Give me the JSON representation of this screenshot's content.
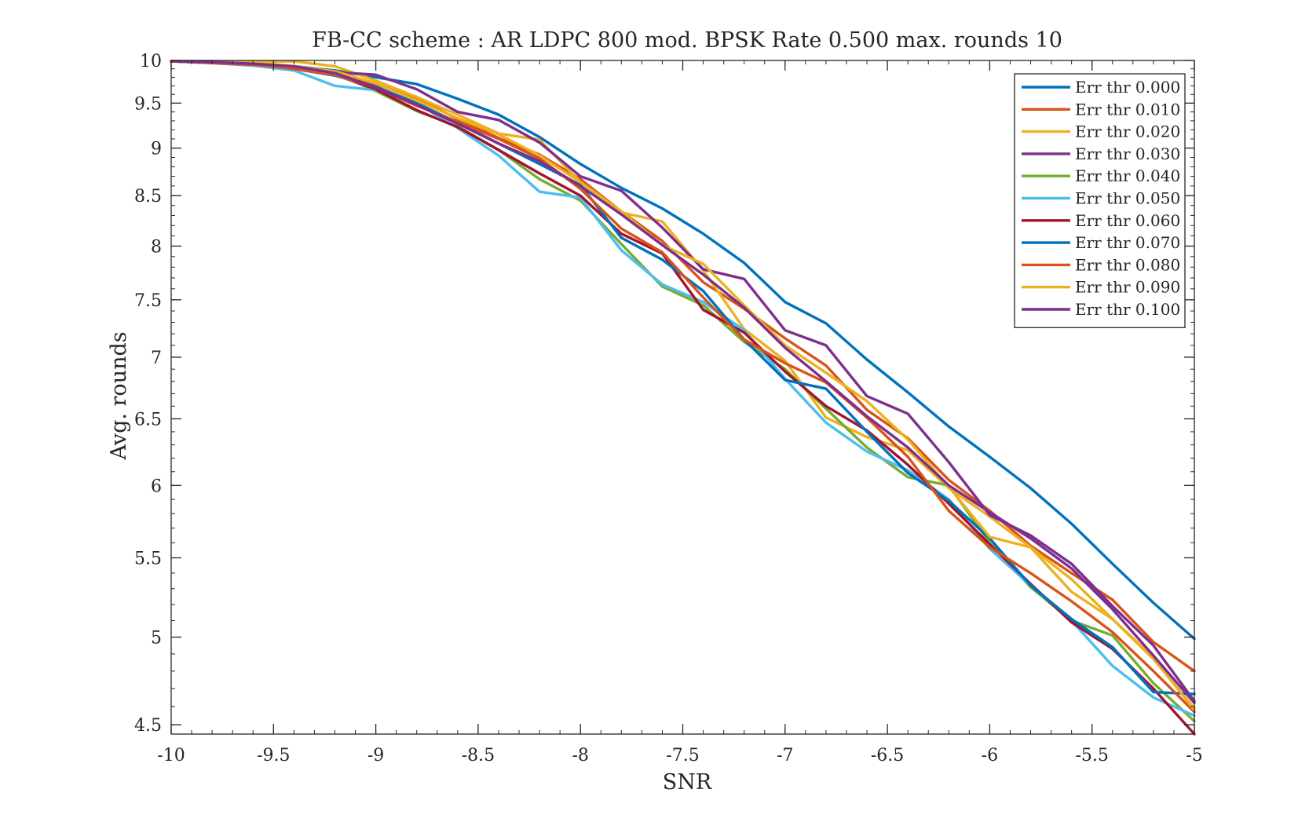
{
  "chart_data": {
    "type": "line",
    "title": "FB-CC scheme : AR LDPC 800 mod. BPSK Rate 0.500 max. rounds 10",
    "xlabel": "SNR",
    "ylabel": "Avg. rounds",
    "xlim": [
      -10,
      -5
    ],
    "ylim": [
      4.45,
      10
    ],
    "yscale": "log",
    "grid": false,
    "legend_position": "top-right",
    "x_ticks": [
      -10,
      -9.5,
      -9,
      -8.5,
      -8,
      -7.5,
      -7,
      -6.5,
      -6,
      -5.5,
      -5
    ],
    "x_tick_labels": [
      "-10",
      "-9.5",
      "-9",
      "-8.5",
      "-8",
      "-7.5",
      "-7",
      "-6.5",
      "-6",
      "-5.5",
      "-5"
    ],
    "y_ticks": [
      4.5,
      5,
      5.5,
      6,
      6.5,
      7,
      7.5,
      8,
      8.5,
      9,
      9.5,
      10
    ],
    "y_tick_labels": [
      "4.5",
      "5",
      "5.5",
      "6",
      "6.5",
      "7",
      "7.5",
      "8",
      "8.5",
      "9",
      "9.5",
      "10"
    ],
    "x": [
      -10,
      -9.8,
      -9.6,
      -9.4,
      -9.2,
      -9.0,
      -8.8,
      -8.6,
      -8.4,
      -8.2,
      -8.0,
      -7.8,
      -7.6,
      -7.4,
      -7.2,
      -7.0,
      -6.8,
      -6.6,
      -6.4,
      -6.2,
      -6.0,
      -5.8,
      -5.6,
      -5.4,
      -5.2,
      -5.0
    ],
    "series": [
      {
        "name": "Err thr 0.000",
        "color": "#0072bd",
        "values": [
          9.99,
          9.99,
          9.97,
          9.93,
          9.88,
          9.8,
          9.72,
          9.55,
          9.37,
          9.12,
          8.83,
          8.58,
          8.37,
          8.12,
          7.84,
          7.48,
          7.29,
          6.98,
          6.71,
          6.44,
          6.21,
          5.98,
          5.73,
          5.46,
          5.21,
          4.99
        ]
      },
      {
        "name": "Err thr 0.010",
        "color": "#d95319",
        "values": [
          9.99,
          9.98,
          9.96,
          9.92,
          9.85,
          9.72,
          9.56,
          9.32,
          9.11,
          8.93,
          8.67,
          8.34,
          8.05,
          7.66,
          7.42,
          7.16,
          6.93,
          6.57,
          6.35,
          6.04,
          5.82,
          5.58,
          5.4,
          5.23,
          4.97,
          4.8
        ]
      },
      {
        "name": "Err thr 0.020",
        "color": "#edb120",
        "values": [
          9.99,
          9.98,
          9.98,
          9.99,
          9.93,
          9.76,
          9.57,
          9.37,
          9.16,
          9.09,
          8.64,
          8.33,
          8.24,
          7.77,
          7.24,
          6.97,
          6.51,
          6.36,
          6.26,
          5.98,
          5.78,
          5.57,
          5.36,
          5.11,
          4.87,
          4.59
        ]
      },
      {
        "name": "Err thr 0.030",
        "color": "#7e2f8e",
        "values": [
          9.99,
          9.97,
          9.94,
          9.92,
          9.86,
          9.83,
          9.66,
          9.4,
          9.31,
          9.06,
          8.7,
          8.55,
          8.18,
          7.78,
          7.69,
          7.23,
          7.1,
          6.68,
          6.54,
          6.17,
          5.79,
          5.65,
          5.46,
          5.19,
          4.95,
          4.63
        ]
      },
      {
        "name": "Err thr 0.040",
        "color": "#77ac30",
        "values": [
          9.99,
          9.97,
          9.95,
          9.92,
          9.85,
          9.64,
          9.41,
          9.24,
          8.98,
          8.67,
          8.45,
          8.02,
          7.62,
          7.45,
          7.13,
          6.9,
          6.58,
          6.28,
          6.06,
          6.0,
          5.6,
          5.31,
          5.1,
          5.01,
          4.73,
          4.52
        ]
      },
      {
        "name": "Err thr 0.050",
        "color": "#4dbeee",
        "values": [
          9.99,
          9.97,
          9.94,
          9.88,
          9.7,
          9.65,
          9.5,
          9.22,
          8.92,
          8.54,
          8.48,
          7.96,
          7.64,
          7.48,
          7.23,
          6.82,
          6.47,
          6.25,
          6.11,
          5.9,
          5.56,
          5.32,
          5.1,
          4.83,
          4.65,
          4.55
        ]
      },
      {
        "name": "Err thr 0.060",
        "color": "#a2142f",
        "values": [
          9.99,
          9.97,
          9.95,
          9.91,
          9.83,
          9.66,
          9.42,
          9.23,
          8.98,
          8.73,
          8.5,
          8.12,
          7.93,
          7.41,
          7.21,
          6.88,
          6.6,
          6.41,
          6.15,
          5.87,
          5.59,
          5.33,
          5.09,
          4.93,
          4.7,
          4.45
        ]
      },
      {
        "name": "Err thr 0.070",
        "color": "#0072bd",
        "values": [
          9.99,
          9.98,
          9.96,
          9.9,
          9.82,
          9.69,
          9.5,
          9.28,
          9.05,
          8.83,
          8.61,
          8.08,
          7.87,
          7.58,
          7.15,
          6.81,
          6.74,
          6.4,
          6.09,
          5.89,
          5.63,
          5.32,
          5.11,
          4.94,
          4.68,
          4.67
        ]
      },
      {
        "name": "Err thr 0.080",
        "color": "#d95319",
        "values": [
          9.99,
          9.97,
          9.95,
          9.9,
          9.83,
          9.68,
          9.47,
          9.29,
          9.1,
          8.89,
          8.57,
          8.17,
          7.94,
          7.52,
          7.15,
          6.95,
          6.79,
          6.51,
          6.21,
          5.82,
          5.57,
          5.4,
          5.22,
          5.03,
          4.8,
          4.57
        ]
      },
      {
        "name": "Err thr 0.090",
        "color": "#edb120",
        "values": [
          9.99,
          9.98,
          9.97,
          9.93,
          9.87,
          9.73,
          9.53,
          9.33,
          9.15,
          8.92,
          8.64,
          8.34,
          8.01,
          7.83,
          7.45,
          7.1,
          6.87,
          6.64,
          6.34,
          5.99,
          5.64,
          5.57,
          5.28,
          5.11,
          4.88,
          4.58
        ]
      },
      {
        "name": "Err thr 0.100",
        "color": "#7e2f8e",
        "values": [
          9.99,
          9.98,
          9.96,
          9.93,
          9.85,
          9.68,
          9.48,
          9.27,
          9.05,
          8.86,
          8.6,
          8.31,
          8.01,
          7.73,
          7.43,
          7.08,
          6.8,
          6.52,
          6.28,
          6.0,
          5.81,
          5.63,
          5.43,
          5.17,
          4.89,
          4.62
        ]
      }
    ]
  }
}
